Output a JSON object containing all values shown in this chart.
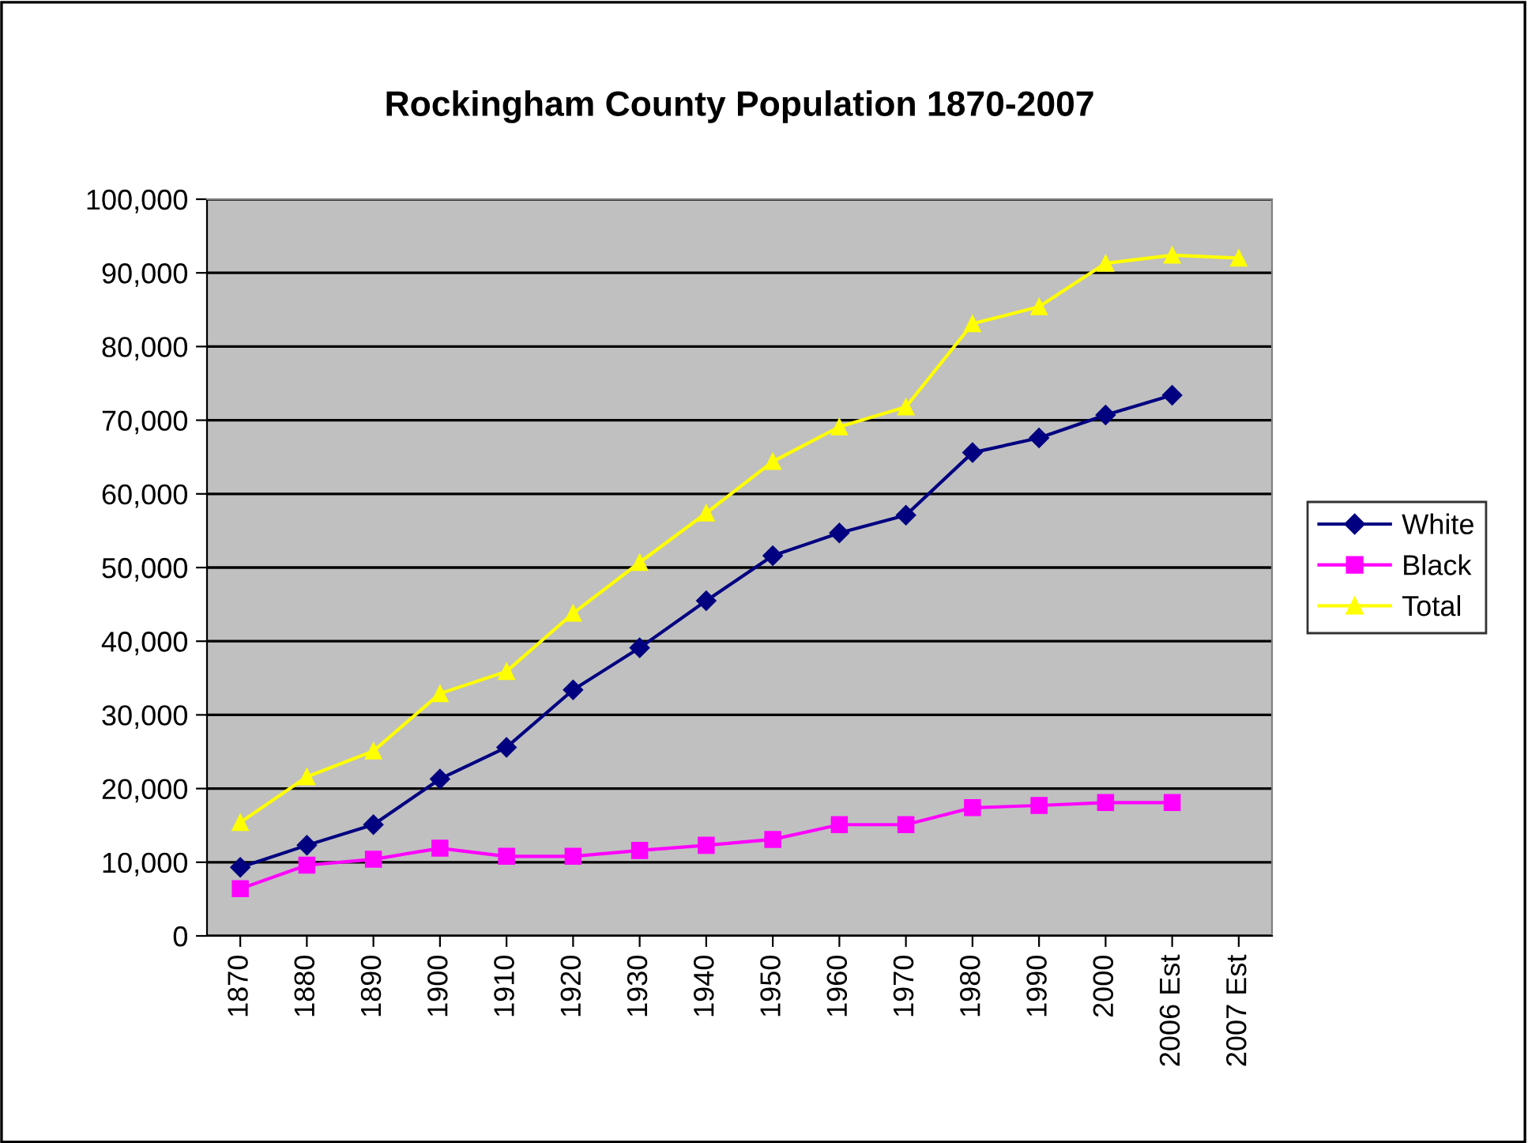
{
  "chart_data": {
    "type": "line",
    "title": "Rockingham County Population 1870-2007",
    "categories": [
      "1870",
      "1880",
      "1890",
      "1900",
      "1910",
      "1920",
      "1930",
      "1940",
      "1950",
      "1960",
      "1970",
      "1980",
      "1990",
      "2000",
      "2006 Est",
      "2007 Est"
    ],
    "series": [
      {
        "name": "White",
        "color": "#000080",
        "marker": "diamond",
        "values": [
          9300,
          12300,
          15100,
          21300,
          25600,
          33400,
          39100,
          45500,
          51600,
          54700,
          57100,
          65600,
          67600,
          70700,
          73400,
          null
        ]
      },
      {
        "name": "Black",
        "color": "#ff00ff",
        "marker": "square",
        "values": [
          6400,
          9600,
          10400,
          11900,
          10800,
          10800,
          11600,
          12300,
          13100,
          15100,
          15100,
          17400,
          17700,
          18100,
          18100,
          null
        ]
      },
      {
        "name": "Total",
        "color": "#ffff00",
        "marker": "triangle",
        "values": [
          15400,
          21600,
          25100,
          32900,
          35900,
          43800,
          50700,
          57400,
          64400,
          69100,
          71800,
          83100,
          85400,
          91300,
          92400,
          92000
        ]
      }
    ],
    "ylim": [
      0,
      100000
    ],
    "yticks": [
      {
        "value": 0,
        "label": "0"
      },
      {
        "value": 10000,
        "label": "10,000"
      },
      {
        "value": 20000,
        "label": "20,000"
      },
      {
        "value": 30000,
        "label": "30,000"
      },
      {
        "value": 40000,
        "label": "40,000"
      },
      {
        "value": 50000,
        "label": "50,000"
      },
      {
        "value": 60000,
        "label": "60,000"
      },
      {
        "value": 70000,
        "label": "70,000"
      },
      {
        "value": 80000,
        "label": "80,000"
      },
      {
        "value": 90000,
        "label": "90,000"
      },
      {
        "value": 100000,
        "label": "100,000"
      }
    ],
    "grid": "y",
    "legend": "right",
    "line_style": "solid"
  }
}
